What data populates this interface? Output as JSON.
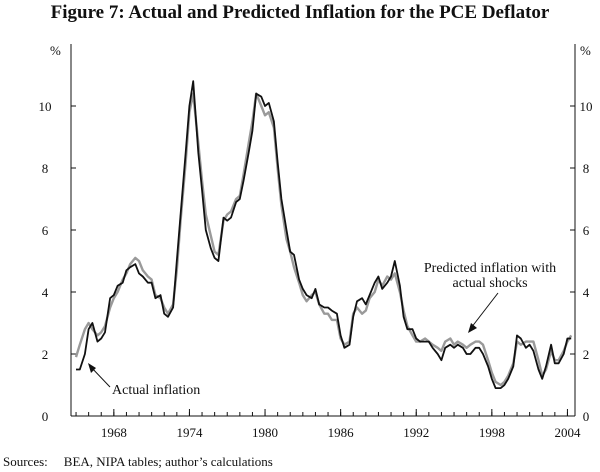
{
  "title": "Figure 7: Actual and Predicted Inflation for the PCE Deflator",
  "source_label": "Sources:",
  "source_text": "BEA, NIPA tables; author’s calculations",
  "colors": {
    "actual": "#111111",
    "predicted": "#9a9a9a",
    "axis": "#111111"
  },
  "chart_data": {
    "type": "line",
    "title": "Figure 7: Actual and Predicted Inflation for the PCE Deflator",
    "ylabel_left": "%",
    "ylabel_right": "%",
    "xlim": [
      1964.6,
      2004.6
    ],
    "ylim": [
      0,
      12
    ],
    "yticks": [
      0,
      2,
      4,
      6,
      8,
      10
    ],
    "xticks": [
      1968,
      1974,
      1980,
      1986,
      1992,
      1998,
      2004
    ],
    "grid": false,
    "annotations": [
      {
        "text": "Actual inflation",
        "series": "Actual inflation"
      },
      {
        "text": "Predicted inflation with",
        "series": "Predicted inflation with actual shocks"
      },
      {
        "text": "actual shocks",
        "series": "Predicted inflation with actual shocks"
      }
    ],
    "series": [
      {
        "name": "Actual inflation",
        "color": "#111111",
        "x": [
          1965.0,
          1965.3,
          1965.7,
          1966.0,
          1966.3,
          1966.7,
          1967.0,
          1967.3,
          1967.7,
          1968.0,
          1968.3,
          1968.7,
          1969.0,
          1969.3,
          1969.7,
          1970.0,
          1970.3,
          1970.7,
          1971.0,
          1971.3,
          1971.7,
          1972.0,
          1972.3,
          1972.7,
          1973.0,
          1973.3,
          1973.7,
          1974.0,
          1974.3,
          1974.7,
          1975.0,
          1975.3,
          1975.7,
          1976.0,
          1976.3,
          1976.7,
          1977.0,
          1977.3,
          1977.7,
          1978.0,
          1978.3,
          1978.7,
          1979.0,
          1979.3,
          1979.7,
          1980.0,
          1980.3,
          1980.7,
          1981.0,
          1981.3,
          1981.7,
          1982.0,
          1982.3,
          1982.7,
          1983.0,
          1983.3,
          1983.7,
          1984.0,
          1984.3,
          1984.7,
          1985.0,
          1985.3,
          1985.7,
          1986.0,
          1986.3,
          1986.7,
          1987.0,
          1987.3,
          1987.7,
          1988.0,
          1988.3,
          1988.7,
          1989.0,
          1989.3,
          1989.7,
          1990.0,
          1990.3,
          1990.7,
          1991.0,
          1991.3,
          1991.7,
          1992.0,
          1992.3,
          1992.7,
          1993.0,
          1993.3,
          1993.7,
          1994.0,
          1994.3,
          1994.7,
          1995.0,
          1995.3,
          1995.7,
          1996.0,
          1996.3,
          1996.7,
          1997.0,
          1997.3,
          1997.7,
          1998.0,
          1998.3,
          1998.7,
          1999.0,
          1999.3,
          1999.7,
          2000.0,
          2000.3,
          2000.7,
          2001.0,
          2001.3,
          2001.7,
          2002.0,
          2002.3,
          2002.7,
          2003.0,
          2003.3,
          2003.7,
          2004.0,
          2004.3
        ],
        "values": [
          1.5,
          1.5,
          2.0,
          2.8,
          3.0,
          2.4,
          2.5,
          2.7,
          3.8,
          3.9,
          4.2,
          4.3,
          4.7,
          4.8,
          4.9,
          4.6,
          4.5,
          4.3,
          4.3,
          3.8,
          3.9,
          3.3,
          3.2,
          3.5,
          5.0,
          6.5,
          8.5,
          10.0,
          10.8,
          8.5,
          7.3,
          6.0,
          5.4,
          5.1,
          5.0,
          6.4,
          6.3,
          6.4,
          6.9,
          7.0,
          7.6,
          8.5,
          9.2,
          10.4,
          10.3,
          10.0,
          10.1,
          9.5,
          8.2,
          7.0,
          6.0,
          5.3,
          5.2,
          4.4,
          4.1,
          3.9,
          3.8,
          4.1,
          3.6,
          3.5,
          3.5,
          3.4,
          3.3,
          2.6,
          2.2,
          2.3,
          3.2,
          3.7,
          3.8,
          3.6,
          3.9,
          4.3,
          4.5,
          4.1,
          4.3,
          4.5,
          5.0,
          4.2,
          3.2,
          2.8,
          2.8,
          2.5,
          2.4,
          2.4,
          2.4,
          2.2,
          2.0,
          1.8,
          2.2,
          2.3,
          2.2,
          2.3,
          2.2,
          2.0,
          2.0,
          2.2,
          2.2,
          2.0,
          1.6,
          1.2,
          0.9,
          0.9,
          1.0,
          1.2,
          1.6,
          2.6,
          2.5,
          2.2,
          2.3,
          2.1,
          1.5,
          1.2,
          1.6,
          2.3,
          1.7,
          1.7,
          2.0,
          2.5,
          2.5
        ]
      },
      {
        "name": "Predicted inflation with actual shocks",
        "color": "#9a9a9a",
        "x": [
          1965.0,
          1965.3,
          1965.7,
          1966.0,
          1966.3,
          1966.7,
          1967.0,
          1967.3,
          1967.7,
          1968.0,
          1968.3,
          1968.7,
          1969.0,
          1969.3,
          1969.7,
          1970.0,
          1970.3,
          1970.7,
          1971.0,
          1971.3,
          1971.7,
          1972.0,
          1972.3,
          1972.7,
          1973.0,
          1973.3,
          1973.7,
          1974.0,
          1974.3,
          1974.7,
          1975.0,
          1975.3,
          1975.7,
          1976.0,
          1976.3,
          1976.7,
          1977.0,
          1977.3,
          1977.7,
          1978.0,
          1978.3,
          1978.7,
          1979.0,
          1979.3,
          1979.7,
          1980.0,
          1980.3,
          1980.7,
          1981.0,
          1981.3,
          1981.7,
          1982.0,
          1982.3,
          1982.7,
          1983.0,
          1983.3,
          1983.7,
          1984.0,
          1984.3,
          1984.7,
          1985.0,
          1985.3,
          1985.7,
          1986.0,
          1986.3,
          1986.7,
          1987.0,
          1987.3,
          1987.7,
          1988.0,
          1988.3,
          1988.7,
          1989.0,
          1989.3,
          1989.7,
          1990.0,
          1990.3,
          1990.7,
          1991.0,
          1991.3,
          1991.7,
          1992.0,
          1992.3,
          1992.7,
          1993.0,
          1993.3,
          1993.7,
          1994.0,
          1994.3,
          1994.7,
          1995.0,
          1995.3,
          1995.7,
          1996.0,
          1996.3,
          1996.7,
          1997.0,
          1997.3,
          1997.7,
          1998.0,
          1998.3,
          1998.7,
          1999.0,
          1999.3,
          1999.7,
          2000.0,
          2000.3,
          2000.7,
          2001.0,
          2001.3,
          2001.7,
          2002.0,
          2002.3,
          2002.7,
          2003.0,
          2003.3,
          2003.7,
          2004.0,
          2004.3
        ],
        "values": [
          1.9,
          2.3,
          2.8,
          3.0,
          2.8,
          2.6,
          2.7,
          2.9,
          3.5,
          3.8,
          4.0,
          4.4,
          4.6,
          4.9,
          5.1,
          5.0,
          4.7,
          4.5,
          4.4,
          3.9,
          3.8,
          3.5,
          3.3,
          3.6,
          4.7,
          6.3,
          8.2,
          9.8,
          10.4,
          8.8,
          7.6,
          6.5,
          5.8,
          5.3,
          5.2,
          6.3,
          6.5,
          6.6,
          7.0,
          7.1,
          7.8,
          8.8,
          9.5,
          10.4,
          10.0,
          9.7,
          9.8,
          9.3,
          8.0,
          6.8,
          5.7,
          5.3,
          4.8,
          4.3,
          3.9,
          3.7,
          3.9,
          4.0,
          3.6,
          3.3,
          3.3,
          3.1,
          3.1,
          2.5,
          2.3,
          2.4,
          3.3,
          3.5,
          3.3,
          3.4,
          3.8,
          4.0,
          4.4,
          4.2,
          4.5,
          4.4,
          4.6,
          4.0,
          3.4,
          2.9,
          2.6,
          2.4,
          2.4,
          2.5,
          2.4,
          2.3,
          2.2,
          2.1,
          2.4,
          2.5,
          2.3,
          2.4,
          2.3,
          2.2,
          2.3,
          2.4,
          2.4,
          2.3,
          1.8,
          1.4,
          1.1,
          1.0,
          1.1,
          1.3,
          1.7,
          2.4,
          2.3,
          2.4,
          2.4,
          2.4,
          1.8,
          1.3,
          1.5,
          2.1,
          1.8,
          1.8,
          2.1,
          2.4,
          2.6
        ]
      }
    ]
  }
}
